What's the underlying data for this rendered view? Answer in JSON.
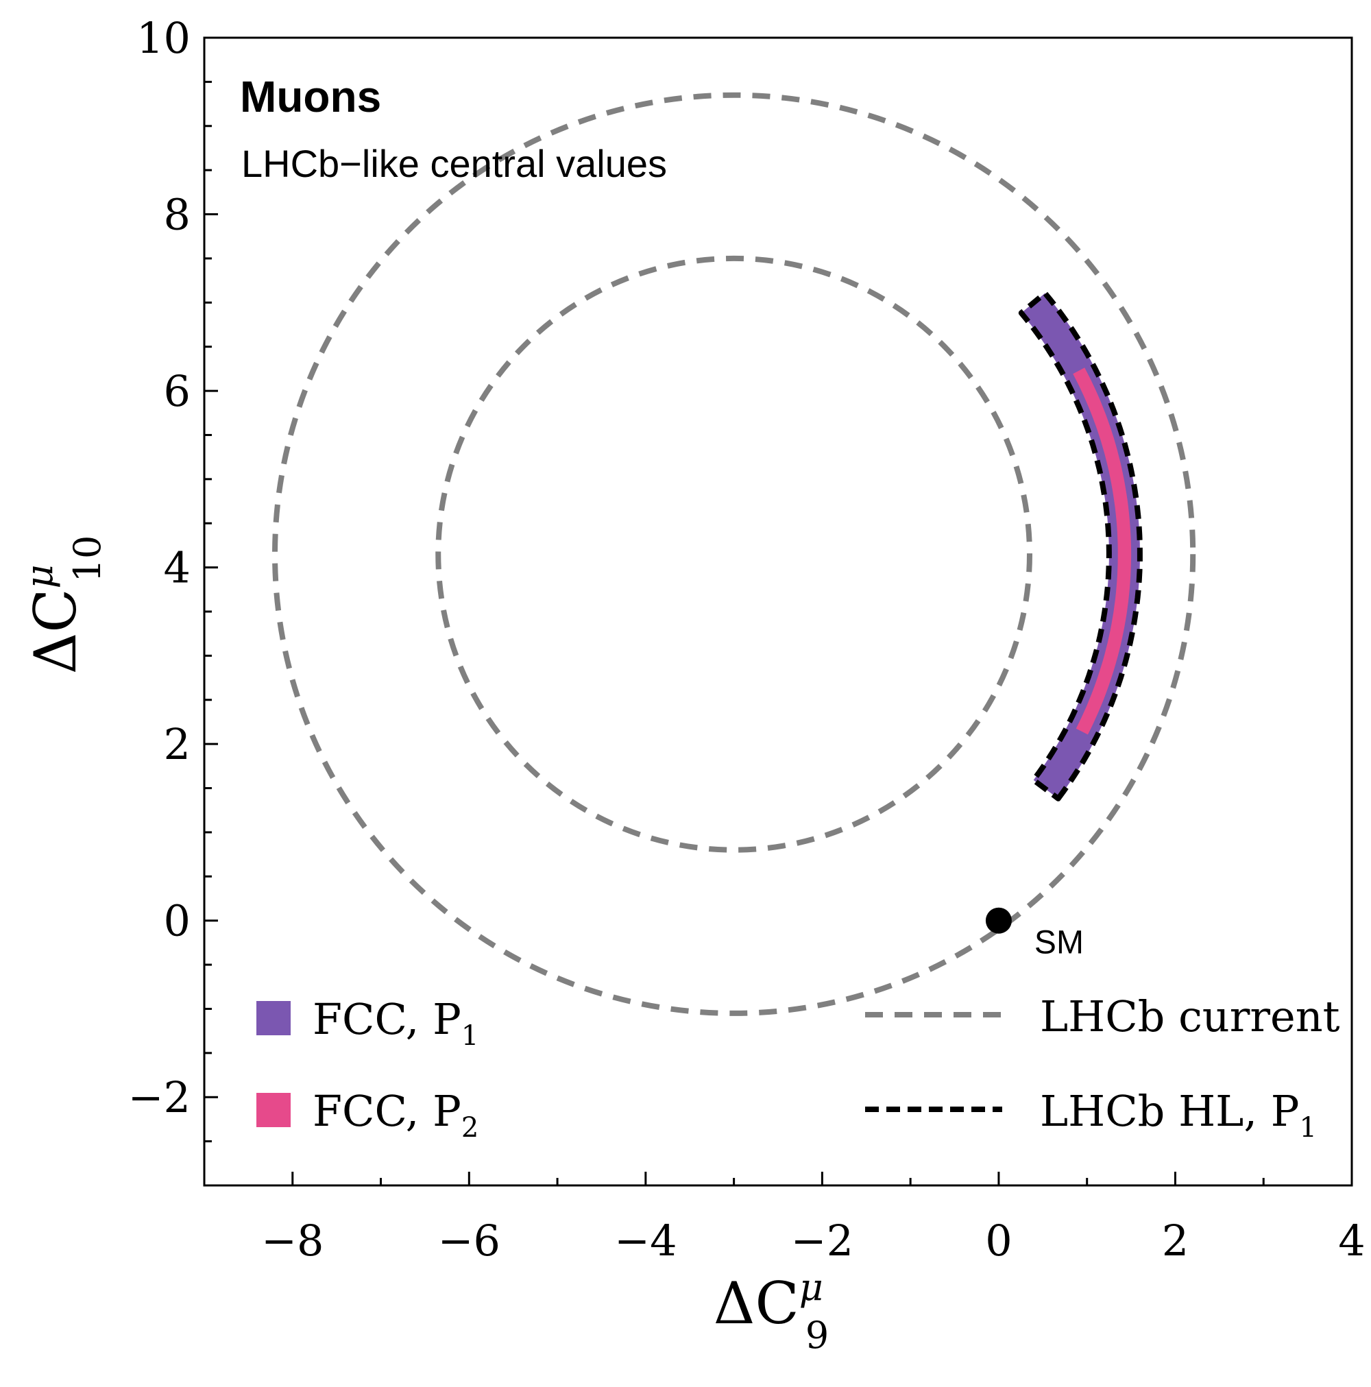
{
  "chart_data": {
    "type": "contour",
    "title": "Muons",
    "subtitle": "LHCb−like central values",
    "xlabel": {
      "main": "ΔC",
      "sup": "μ",
      "sub": "9"
    },
    "ylabel": {
      "main": "ΔC",
      "sup": "μ",
      "sub": "10"
    },
    "xlim": [
      -9,
      4
    ],
    "ylim": [
      -3,
      10
    ],
    "x_ticks": [
      -8,
      -6,
      -4,
      -2,
      0,
      2,
      4
    ],
    "x_tick_labels": [
      "−8",
      "−6",
      "−4",
      "−2",
      "0",
      "2",
      "4"
    ],
    "y_ticks": [
      -2,
      0,
      2,
      4,
      6,
      8,
      10
    ],
    "y_tick_labels": [
      "−2",
      "0",
      "2",
      "4",
      "6",
      "8",
      "10"
    ],
    "grid": false,
    "center": [
      -3.0,
      4.15
    ],
    "series": [
      {
        "name": "LHCb current",
        "kind": "dashed-ring",
        "color": "#808080",
        "inner_radius": 3.35,
        "outer_radius": 5.2
      },
      {
        "name": "FCC, P1",
        "kind": "filled-crescent",
        "color": "#7b57b1",
        "inner_radius": 4.25,
        "outer_radius": 4.6,
        "theta_start_deg": -37,
        "theta_end_deg": 40
      },
      {
        "name": "FCC, P2",
        "kind": "filled-crescent",
        "color": "#e64a8b",
        "inner_radius": 4.35,
        "outer_radius": 4.5,
        "theta_start_deg": -27,
        "theta_end_deg": 28
      },
      {
        "name": "LHCb HL, P1",
        "kind": "dashed-crescent",
        "color": "#000000",
        "inner_radius": 4.25,
        "outer_radius": 4.6,
        "theta_start_deg": -37,
        "theta_end_deg": 40
      }
    ],
    "points": [
      {
        "label": "SM",
        "x": 0,
        "y": 0
      }
    ],
    "legend": {
      "left": [
        {
          "label": "FCC, P",
          "sub": "1",
          "series": "FCC, P1"
        },
        {
          "label": "FCC, P",
          "sub": "2",
          "series": "FCC, P2"
        }
      ],
      "right": [
        {
          "label": "LHCb current",
          "series": "LHCb current"
        },
        {
          "label": "LHCb HL, P",
          "sub": "1",
          "series": "LHCb HL, P1"
        }
      ],
      "placement": "bottom"
    }
  }
}
